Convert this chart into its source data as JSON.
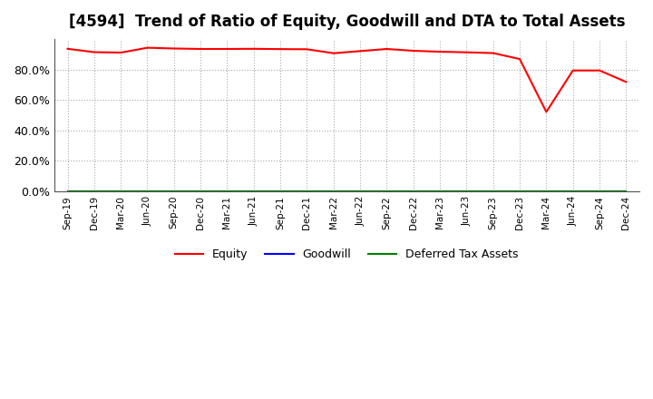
{
  "title": "[4594]  Trend of Ratio of Equity, Goodwill and DTA to Total Assets",
  "x_labels": [
    "Sep-19",
    "Dec-19",
    "Mar-20",
    "Jun-20",
    "Sep-20",
    "Dec-20",
    "Mar-21",
    "Jun-21",
    "Sep-21",
    "Dec-21",
    "Mar-22",
    "Jun-22",
    "Sep-22",
    "Dec-22",
    "Mar-23",
    "Jun-23",
    "Sep-23",
    "Dec-23",
    "Mar-24",
    "Jun-24",
    "Sep-24",
    "Dec-24"
  ],
  "equity": [
    0.935,
    0.913,
    0.91,
    0.942,
    0.937,
    0.934,
    0.934,
    0.935,
    0.933,
    0.932,
    0.906,
    0.92,
    0.934,
    0.922,
    0.916,
    0.912,
    0.907,
    0.868,
    0.521,
    0.793,
    0.793,
    0.718
  ],
  "goodwill": [
    0.0,
    0.0,
    0.0,
    0.0,
    0.0,
    0.0,
    0.0,
    0.0,
    0.0,
    0.0,
    0.0,
    0.0,
    0.0,
    0.0,
    0.0,
    0.0,
    0.0,
    0.0,
    0.0,
    0.0,
    0.0,
    0.0
  ],
  "dta": [
    0.0,
    0.0,
    0.0,
    0.0,
    0.0,
    0.0,
    0.0,
    0.0,
    0.0,
    0.0,
    0.0,
    0.0,
    0.0,
    0.0,
    0.0,
    0.0,
    0.0,
    0.0,
    0.0,
    0.0,
    0.0,
    0.0
  ],
  "equity_color": "#ff0000",
  "goodwill_color": "#0000ff",
  "dta_color": "#008000",
  "ylim": [
    0.0,
    1.0
  ],
  "yticks": [
    0.0,
    0.2,
    0.4,
    0.6,
    0.8
  ],
  "background_color": "#ffffff",
  "plot_bg_color": "#ffffff",
  "grid_color": "#aaaaaa",
  "title_fontsize": 12,
  "legend_labels": [
    "Equity",
    "Goodwill",
    "Deferred Tax Assets"
  ]
}
